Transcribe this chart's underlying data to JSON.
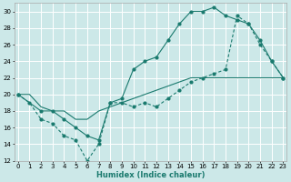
{
  "xlabel": "Humidex (Indice chaleur)",
  "background_color": "#cce8e8",
  "grid_color": "#ffffff",
  "line_color": "#1a7a6e",
  "xlim": [
    0,
    23
  ],
  "ylim": [
    12,
    31
  ],
  "xticks": [
    0,
    1,
    2,
    3,
    4,
    5,
    6,
    7,
    8,
    9,
    10,
    11,
    12,
    13,
    14,
    15,
    16,
    17,
    18,
    19,
    20,
    21,
    22,
    23
  ],
  "yticks": [
    12,
    14,
    16,
    18,
    20,
    22,
    24,
    26,
    28,
    30
  ],
  "line1_x": [
    0,
    1,
    2,
    3,
    4,
    5,
    6,
    7,
    8,
    9,
    10,
    11,
    12,
    13,
    14,
    15,
    16,
    17,
    18,
    19,
    20,
    21,
    22,
    23
  ],
  "line1_y": [
    20,
    19,
    17,
    16.5,
    15,
    14.5,
    12,
    14,
    19,
    19,
    18.5,
    19,
    18.5,
    19.5,
    20.5,
    21.5,
    22,
    22.5,
    23,
    29.5,
    28.5,
    26,
    24,
    22
  ],
  "line2_x": [
    0,
    2,
    3,
    4,
    5,
    6,
    7,
    8,
    9,
    10,
    11,
    12,
    13,
    14,
    15,
    16,
    17,
    18,
    19,
    20,
    21,
    22,
    23
  ],
  "line2_y": [
    20,
    18,
    18,
    17,
    16,
    15,
    14.5,
    19,
    19.5,
    23,
    24,
    24.5,
    26.5,
    28.5,
    30,
    30,
    30.5,
    29.5,
    29,
    28.5,
    26.5,
    24,
    22
  ],
  "line3_x": [
    0,
    1,
    2,
    3,
    4,
    5,
    6,
    7,
    8,
    9,
    10,
    11,
    12,
    13,
    14,
    15,
    16,
    17,
    18,
    19,
    20,
    21,
    22,
    23
  ],
  "line3_y": [
    20,
    20,
    18.5,
    18,
    18,
    17,
    17,
    18,
    18.5,
    19,
    19.5,
    20,
    20.5,
    21,
    21.5,
    22,
    22,
    22,
    22,
    22,
    22,
    22,
    22,
    22
  ]
}
